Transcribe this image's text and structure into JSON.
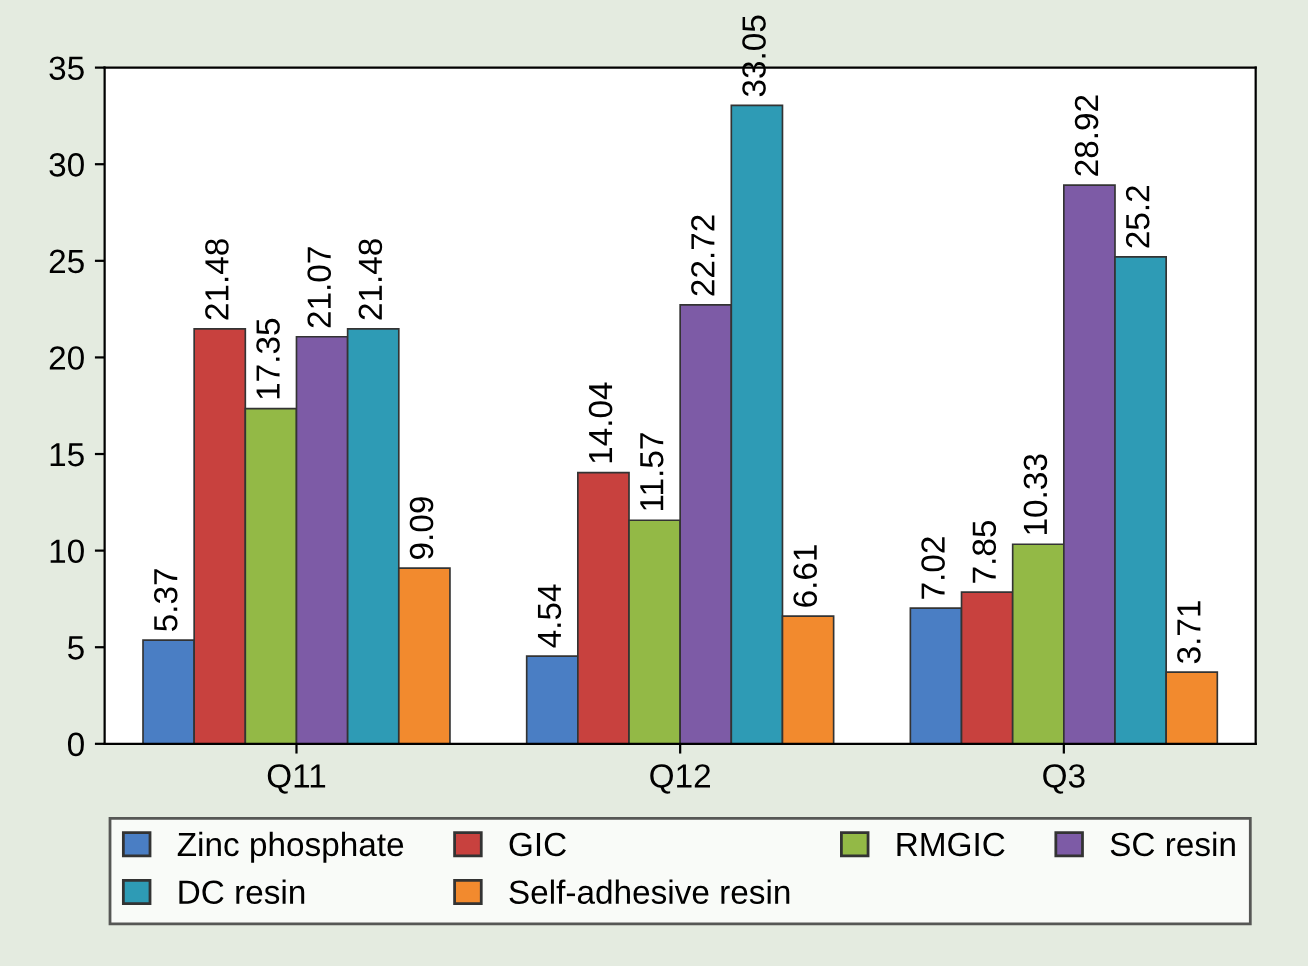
{
  "chart_data": {
    "type": "bar",
    "categories": [
      "Q11",
      "Q12",
      "Q3"
    ],
    "series": [
      {
        "name": "Zinc phosphate",
        "color": "#4a7ec4",
        "values": [
          5.37,
          4.54,
          7.02
        ]
      },
      {
        "name": "GIC",
        "color": "#c8413e",
        "values": [
          21.48,
          14.04,
          7.85
        ]
      },
      {
        "name": "RMGIC",
        "color": "#93b946",
        "values": [
          17.35,
          11.57,
          10.33
        ]
      },
      {
        "name": "SC resin",
        "color": "#7d5ba6",
        "values": [
          21.07,
          22.72,
          28.92
        ]
      },
      {
        "name": "DC resin",
        "color": "#2e9bb5",
        "values": [
          21.48,
          33.05,
          25.2
        ]
      },
      {
        "name": "Self-adhesive resin",
        "color": "#f28a2e",
        "values": [
          9.09,
          6.61,
          3.71
        ]
      }
    ],
    "ylim": [
      0,
      35
    ],
    "yticks": [
      0,
      5,
      10,
      15,
      20,
      25,
      30,
      35
    ],
    "data_labels": true,
    "legend": "bottom",
    "grid": false
  }
}
